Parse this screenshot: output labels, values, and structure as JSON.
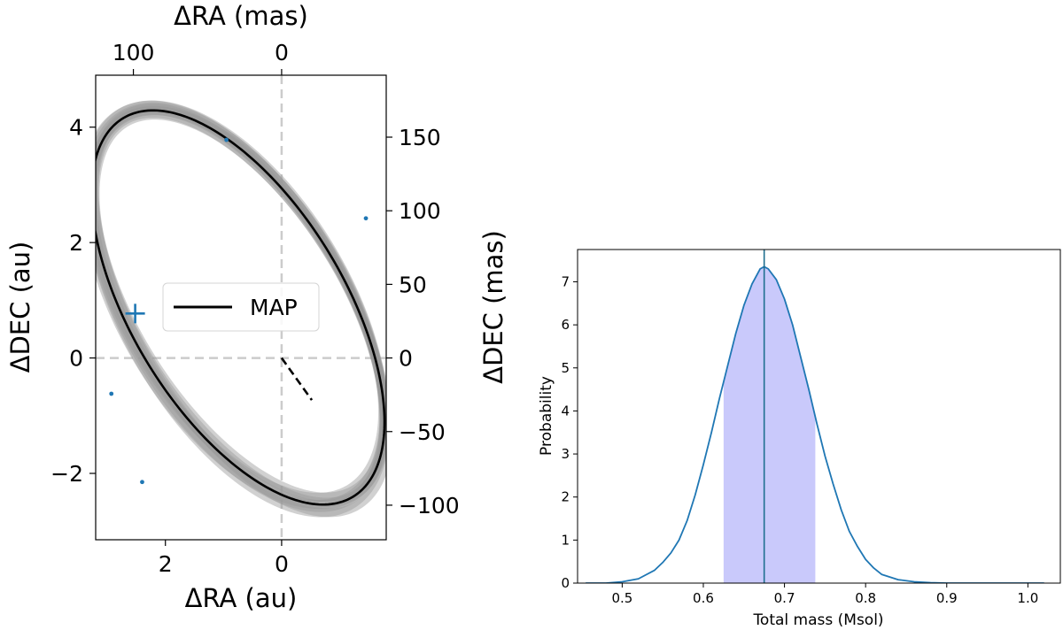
{
  "chart_data": [
    {
      "type": "orbit",
      "xlabel": "ΔRA (au)",
      "ylabel": "ΔDEC (au)",
      "top_xlabel": "ΔRA (mas)",
      "right_ylabel": "ΔDEC (mas)",
      "xlim": [
        3.2,
        -1.8
      ],
      "ylim": [
        -3.15,
        4.9
      ],
      "x_ticks": [
        2,
        0
      ],
      "x_tick_labels": [
        "2",
        "0"
      ],
      "y_ticks": [
        -2,
        0,
        2,
        4
      ],
      "y_tick_labels": [
        "−2",
        "0",
        "2",
        "4"
      ],
      "mas_per_au": 39.2,
      "top_ticks_mas": [
        100,
        0
      ],
      "top_tick_labels": [
        "100",
        "0"
      ],
      "right_ticks_mas": [
        -100,
        -50,
        0,
        50,
        100,
        150
      ],
      "right_tick_labels": [
        "−100",
        "−50",
        "0",
        "50",
        "100",
        "150"
      ],
      "legend": {
        "label": "MAP",
        "position": "center-left"
      },
      "map_orbit": {
        "center": [
          0.75,
          0.875
        ],
        "semi_major": 3.83,
        "semi_minor": 1.83,
        "major_axis_angle_deg": 59,
        "color": "#000000"
      },
      "periastron_line": {
        "from": [
          0,
          0
        ],
        "to": [
          -0.52,
          -0.73
        ]
      },
      "observations": [
        {
          "ra": 0.95,
          "dec": 3.78
        },
        {
          "ra": -1.45,
          "dec": 2.42
        },
        {
          "ra": 2.4,
          "dec": -2.15
        },
        {
          "ra": 2.93,
          "dec": -0.62
        }
      ],
      "marker": {
        "ra": 2.52,
        "dec": 0.77,
        "symbol": "+"
      },
      "reference_lines": {
        "x": 0,
        "y": 0,
        "style": "dashed",
        "color": "#cccccc"
      },
      "colors": {
        "observation": "#1f77b4",
        "posterior": "#9a9a9a"
      }
    },
    {
      "type": "density",
      "xlabel": "Total mass (Msol)",
      "ylabel": "Probability",
      "xlim": [
        0.445,
        1.04
      ],
      "ylim": [
        0,
        7.75
      ],
      "x_ticks": [
        0.5,
        0.6,
        0.7,
        0.8,
        0.9,
        1.0
      ],
      "x_tick_labels": [
        "0.5",
        "0.6",
        "0.7",
        "0.8",
        "0.9",
        "1.0"
      ],
      "y_ticks": [
        0,
        1,
        2,
        3,
        4,
        5,
        6,
        7
      ],
      "y_tick_labels": [
        "0",
        "1",
        "2",
        "3",
        "4",
        "5",
        "6",
        "7"
      ],
      "x": [
        0.455,
        0.48,
        0.5,
        0.52,
        0.54,
        0.55,
        0.56,
        0.57,
        0.58,
        0.59,
        0.6,
        0.61,
        0.62,
        0.63,
        0.64,
        0.65,
        0.66,
        0.67,
        0.675,
        0.68,
        0.69,
        0.7,
        0.71,
        0.72,
        0.73,
        0.74,
        0.75,
        0.76,
        0.77,
        0.78,
        0.79,
        0.8,
        0.81,
        0.82,
        0.84,
        0.86,
        0.88,
        0.9,
        0.95,
        1.02
      ],
      "y": [
        0,
        0,
        0.03,
        0.1,
        0.3,
        0.48,
        0.7,
        1.0,
        1.45,
        2.05,
        2.75,
        3.5,
        4.3,
        5.05,
        5.8,
        6.45,
        6.95,
        7.3,
        7.35,
        7.3,
        7.05,
        6.6,
        6.0,
        5.25,
        4.5,
        3.7,
        2.95,
        2.3,
        1.7,
        1.2,
        0.85,
        0.55,
        0.35,
        0.2,
        0.08,
        0.03,
        0.01,
        0,
        0,
        0
      ],
      "credible_interval": [
        0.625,
        0.738
      ],
      "median": 0.675,
      "colors": {
        "line": "#1f77b4",
        "median": "#1f6f8f",
        "interval": "#c9c9fb"
      }
    }
  ]
}
